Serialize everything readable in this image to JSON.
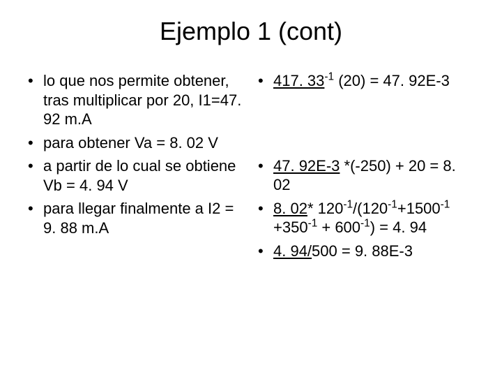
{
  "title": "Ejemplo 1 (cont)",
  "left": {
    "items": [
      {
        "html": "lo que nos permite obtener, tras multiplicar por 20, I1=47. 92 m.A"
      },
      {
        "html": "para obtener  Va = 8. 02 V"
      },
      {
        "html": "a partir de lo cual se obtiene Vb = 4. 94 V"
      },
      {
        "html": "para llegar finalmente a I2 = 9. 88 m.A"
      }
    ]
  },
  "right": {
    "items": [
      {
        "html": "<span class=\"u\">417. 33</span><sup>-1</sup> (20) = 47. 92E-3",
        "pre": "none"
      },
      {
        "html": "<span class=\"u\">47. 92E-3</span> *(-250) + 20 = 8. 02",
        "pre": "spacer"
      },
      {
        "html": "<span class=\"u\">8. 02</span>* 120<sup>-1</sup>/(120<sup>-1</sup>+1500<sup>-1</sup> +350<sup>-1</sup> + 600<sup>-1</sup>) = 4. 94",
        "pre": "none"
      },
      {
        "html": "<span class=\"u\">4. 94/</span>500 = 9. 88E-3",
        "pre": "none"
      }
    ]
  },
  "colors": {
    "background": "#ffffff",
    "text": "#000000"
  },
  "fontsize": {
    "title": 36,
    "body": 22
  }
}
